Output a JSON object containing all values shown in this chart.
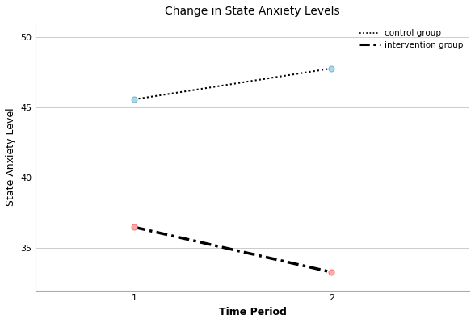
{
  "title": "Change in State Anxiety Levels",
  "xlabel": "Time Period",
  "ylabel": "State Anxiety Level",
  "control": {
    "x": [
      1,
      2
    ],
    "y": [
      45.6,
      47.8
    ],
    "label": "control group",
    "color": "#000000",
    "linewidth": 1.5,
    "markersize": 5
  },
  "intervention": {
    "x": [
      1,
      2
    ],
    "y": [
      36.5,
      33.3
    ],
    "label": "intervention group",
    "color": "#000000",
    "linewidth": 2.5,
    "markersize": 5
  },
  "ylim": [
    32,
    51
  ],
  "xlim": [
    0.5,
    2.7
  ],
  "xticks": [
    1,
    2
  ],
  "yticks": [
    35,
    40,
    45,
    50
  ],
  "grid_color": "#cccccc",
  "bg_color": "#ffffff",
  "title_fontsize": 10,
  "label_fontsize": 9,
  "tick_fontsize": 8,
  "ctrl_marker_color": "#add8e6",
  "ctrl_marker_edge": "#7ab8d4",
  "intv_marker_color": "#ffaaaa",
  "intv_marker_edge": "#ff7777"
}
